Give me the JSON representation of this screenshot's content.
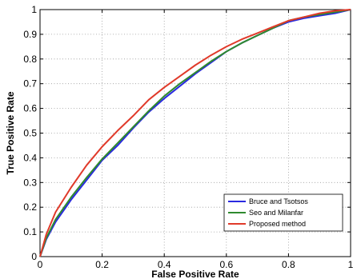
{
  "chart_data": {
    "type": "line",
    "title": "",
    "xlabel": "False Positive Rate",
    "ylabel": "True Positive Rate",
    "xlim": [
      0,
      1
    ],
    "ylim": [
      0,
      1
    ],
    "x_ticks": [
      "0",
      "0.2",
      "0.4",
      "0.6",
      "0.8",
      "1"
    ],
    "y_ticks": [
      "0",
      "0.1",
      "0.2",
      "0.3",
      "0.4",
      "0.5",
      "0.6",
      "0.7",
      "0.8",
      "0.9",
      "1"
    ],
    "grid": true,
    "legend_position": "bottom-right",
    "series": [
      {
        "name": "Bruce and Tsotsos",
        "color": "#2a2ae0",
        "x": [
          0,
          0.02,
          0.05,
          0.1,
          0.15,
          0.2,
          0.25,
          0.3,
          0.35,
          0.4,
          0.45,
          0.5,
          0.55,
          0.6,
          0.65,
          0.7,
          0.75,
          0.8,
          0.85,
          0.9,
          0.95,
          1
        ],
        "y": [
          0,
          0.07,
          0.14,
          0.23,
          0.31,
          0.39,
          0.45,
          0.52,
          0.585,
          0.64,
          0.69,
          0.74,
          0.785,
          0.83,
          0.865,
          0.895,
          0.925,
          0.95,
          0.965,
          0.975,
          0.985,
          1
        ]
      },
      {
        "name": "Seo and Milanfar",
        "color": "#2f8a2f",
        "x": [
          0,
          0.02,
          0.05,
          0.1,
          0.15,
          0.2,
          0.25,
          0.3,
          0.35,
          0.4,
          0.45,
          0.5,
          0.55,
          0.6,
          0.65,
          0.7,
          0.75,
          0.8,
          0.85,
          0.9,
          0.95,
          1
        ],
        "y": [
          0,
          0.075,
          0.15,
          0.24,
          0.32,
          0.395,
          0.46,
          0.525,
          0.59,
          0.65,
          0.7,
          0.745,
          0.79,
          0.83,
          0.865,
          0.895,
          0.925,
          0.955,
          0.97,
          0.98,
          0.99,
          1
        ]
      },
      {
        "name": "Proposed method",
        "color": "#e03a2a",
        "x": [
          0,
          0.02,
          0.05,
          0.1,
          0.15,
          0.2,
          0.25,
          0.3,
          0.35,
          0.4,
          0.45,
          0.5,
          0.55,
          0.6,
          0.65,
          0.7,
          0.75,
          0.8,
          0.85,
          0.9,
          0.95,
          1
        ],
        "y": [
          0,
          0.09,
          0.18,
          0.28,
          0.37,
          0.445,
          0.51,
          0.57,
          0.635,
          0.685,
          0.73,
          0.775,
          0.815,
          0.85,
          0.88,
          0.905,
          0.93,
          0.955,
          0.97,
          0.985,
          0.995,
          1
        ]
      }
    ]
  }
}
